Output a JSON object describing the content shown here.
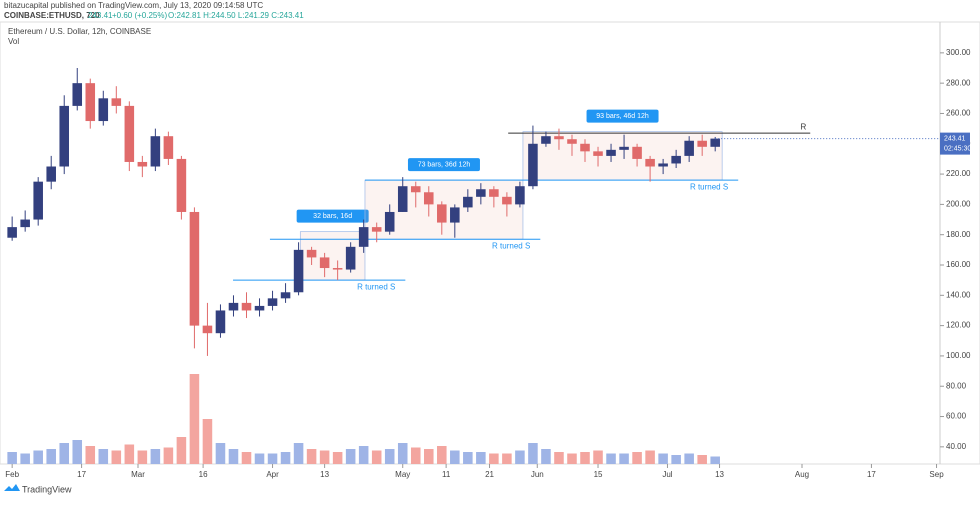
{
  "header": {
    "publisher": "bitazucapital published on TradingView.com, July 13, 2020 09:14:58 UTC",
    "symbol": "COINBASE:ETHUSD, 720",
    "last": "243.41",
    "change": "+0.60 (+0.25%)",
    "ohlc": "O:242.81 H:244.50 L:241.29 C:243.41"
  },
  "footer": {
    "brand": "TradingView"
  },
  "chart_data": {
    "type": "candlestick",
    "title": "Ethereum / U.S. Dollar, 12h, COINBASE",
    "subtitle": "Vol",
    "up_color": "#33407f",
    "down_color": "#e06a6a",
    "volume_up_color": "#9fb4e6",
    "volume_down_color": "#f3a59f",
    "x": [
      0,
      3,
      6,
      9,
      12,
      15,
      18,
      21,
      24,
      27,
      30,
      33,
      36,
      39,
      42,
      45,
      48,
      51,
      54,
      57,
      60,
      63,
      66,
      69,
      72,
      75,
      78,
      81,
      84,
      87,
      90,
      93,
      96,
      99,
      102,
      105,
      108,
      111,
      114,
      117,
      120,
      123,
      126,
      129,
      132,
      135,
      138,
      141,
      144,
      147,
      150,
      153,
      156,
      159,
      162
    ],
    "open": [
      178,
      185,
      190,
      215,
      225,
      265,
      280,
      255,
      270,
      265,
      228,
      225,
      245,
      230,
      195,
      120,
      115,
      130,
      135,
      130,
      133,
      138,
      142,
      170,
      165,
      158,
      157,
      172,
      185,
      182,
      195,
      212,
      208,
      200,
      188,
      198,
      205,
      210,
      205,
      200,
      212,
      240,
      245,
      243,
      240,
      235,
      232,
      236,
      238,
      230,
      225,
      227,
      232,
      242,
      238
    ],
    "high": [
      192,
      196,
      218,
      232,
      272,
      290,
      283,
      275,
      278,
      268,
      232,
      250,
      248,
      232,
      198,
      135,
      134,
      140,
      142,
      138,
      143,
      148,
      175,
      172,
      168,
      163,
      175,
      190,
      188,
      200,
      218,
      215,
      212,
      202,
      200,
      210,
      214,
      212,
      208,
      215,
      252,
      248,
      250,
      246,
      243,
      238,
      240,
      246,
      240,
      232,
      230,
      236,
      245,
      246,
      244.5
    ],
    "low": [
      176,
      182,
      186,
      210,
      220,
      262,
      250,
      252,
      260,
      222,
      218,
      222,
      226,
      190,
      105,
      100,
      112,
      126,
      125,
      126,
      130,
      135,
      140,
      160,
      152,
      150,
      155,
      168,
      175,
      180,
      195,
      198,
      192,
      180,
      178,
      195,
      200,
      198,
      192,
      198,
      210,
      238,
      236,
      232,
      228,
      225,
      228,
      230,
      225,
      215,
      220,
      224,
      228,
      232,
      235
    ],
    "close": [
      185,
      190,
      215,
      225,
      265,
      280,
      255,
      270,
      265,
      228,
      225,
      245,
      230,
      195,
      120,
      115,
      130,
      135,
      130,
      133,
      138,
      142,
      170,
      165,
      158,
      157,
      172,
      185,
      182,
      195,
      212,
      208,
      200,
      188,
      198,
      205,
      210,
      205,
      200,
      212,
      240,
      245,
      243,
      240,
      235,
      232,
      236,
      238,
      230,
      225,
      227,
      232,
      242,
      238,
      243.41
    ],
    "volume": [
      8,
      7,
      9,
      10,
      14,
      16,
      12,
      10,
      9,
      13,
      9,
      10,
      11,
      18,
      60,
      30,
      14,
      10,
      8,
      7,
      7,
      8,
      14,
      10,
      9,
      8,
      10,
      12,
      9,
      10,
      14,
      11,
      10,
      12,
      9,
      8,
      8,
      7,
      7,
      9,
      14,
      10,
      8,
      7,
      8,
      9,
      7,
      7,
      8,
      9,
      7,
      6,
      7,
      6,
      5
    ],
    "vlim": [
      0,
      100
    ],
    "xlim": [
      -2.8,
      213.8
    ],
    "xticks": [
      {
        "value": 0,
        "label": "Feb"
      },
      {
        "value": 16,
        "label": "17"
      },
      {
        "value": 29,
        "label": "Mar"
      },
      {
        "value": 44,
        "label": "16"
      },
      {
        "value": 60,
        "label": "Apr"
      },
      {
        "value": 72,
        "label": "13"
      },
      {
        "value": 90,
        "label": "May"
      },
      {
        "value": 100,
        "label": "11"
      },
      {
        "value": 110,
        "label": "21"
      },
      {
        "value": 121,
        "label": "Jun"
      },
      {
        "value": 135,
        "label": "15"
      },
      {
        "value": 151,
        "label": "Jul"
      },
      {
        "value": 163,
        "label": "13"
      },
      {
        "value": 182,
        "label": "Aug"
      },
      {
        "value": 198,
        "label": "17"
      },
      {
        "value": 213,
        "label": "Sep"
      }
    ],
    "ylim": [
      30,
      323
    ],
    "yticks": [
      {
        "value": 40,
        "label": "40.00"
      },
      {
        "value": 60,
        "label": "60.00"
      },
      {
        "value": 80,
        "label": "80.00"
      },
      {
        "value": 100,
        "label": "100.00"
      },
      {
        "value": 120,
        "label": "120.00"
      },
      {
        "value": 140,
        "label": "140.00"
      },
      {
        "value": 160,
        "label": "160.00"
      },
      {
        "value": 180,
        "label": "180.00"
      },
      {
        "value": 200,
        "label": "200.00"
      },
      {
        "value": 220,
        "label": "220.00"
      },
      {
        "value": 240,
        "label": "240.00"
      },
      {
        "value": 260,
        "label": "260.00"
      },
      {
        "value": 280,
        "label": "280.00"
      },
      {
        "value": 300,
        "label": "300.00"
      }
    ],
    "last_price": {
      "value": 243.41,
      "label": "243.41",
      "countdown": "02:45:30"
    },
    "ranges": [
      {
        "label": "32 bars, 16d",
        "x0": 66.4,
        "x1": 81.3,
        "y0": 150,
        "y1": 182
      },
      {
        "label": "73 bars, 36d 12h",
        "x0": 81.3,
        "x1": 117.7,
        "y0": 177,
        "y1": 216
      },
      {
        "label": "93 bars, 46d 12h",
        "x0": 117.7,
        "x1": 163.6,
        "y0": 216,
        "y1": 248
      }
    ],
    "levels": [
      {
        "value": 150,
        "x0": 50.9,
        "x1": 90.6,
        "label": "R turned S"
      },
      {
        "value": 177,
        "x0": 59.4,
        "x1": 121.7,
        "label": "R turned S"
      },
      {
        "value": 216,
        "x0": 81.3,
        "x1": 167.3,
        "label": "R turned S"
      },
      {
        "value": 247,
        "x0": 114.3,
        "x1": 183.9,
        "label": "R"
      }
    ]
  }
}
